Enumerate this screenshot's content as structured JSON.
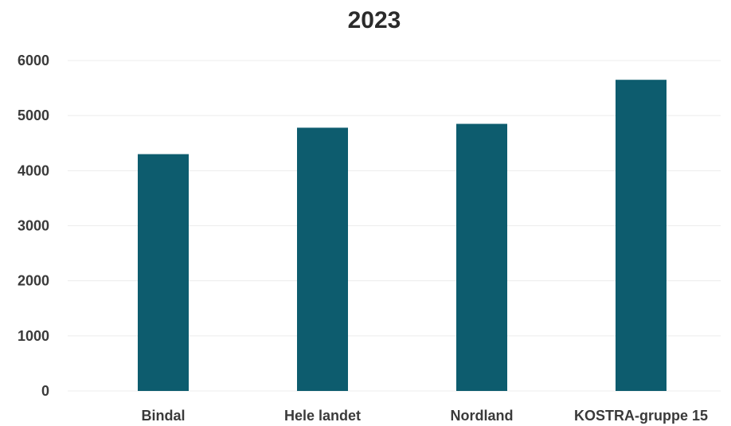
{
  "chart_data": {
    "type": "bar",
    "title": "2023",
    "xlabel": "",
    "ylabel": "",
    "categories": [
      "Bindal",
      "Hele landet",
      "Nordland",
      "KOSTRA-gruppe 15"
    ],
    "values": [
      4300,
      4780,
      4850,
      5650
    ],
    "ylim": [
      0,
      6000
    ],
    "yticks": [
      0,
      1000,
      2000,
      3000,
      4000,
      5000,
      6000
    ],
    "grid": true,
    "legend": "none",
    "bar_color": "#0d5c6e"
  }
}
